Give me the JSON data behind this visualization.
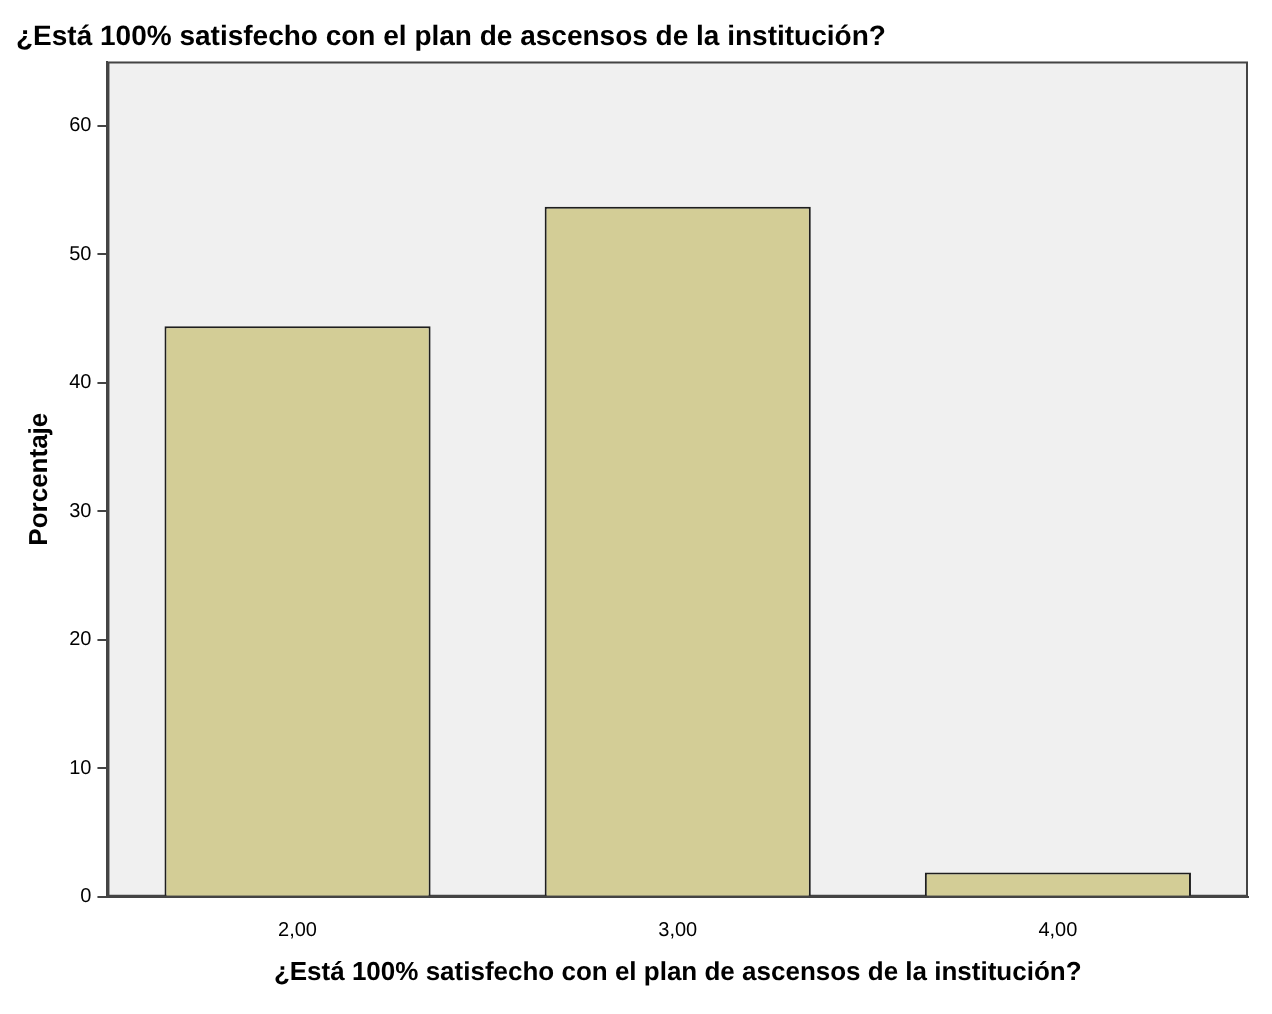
{
  "chart_data": {
    "type": "bar",
    "title": "¿Está 100% satisfecho con el plan de ascensos de la institución?",
    "xlabel": "¿Está 100% satisfecho con el plan de ascensos de la institución?",
    "ylabel": "Porcentaje",
    "categories": [
      "2,00",
      "3,00",
      "4,00"
    ],
    "values": [
      44.4,
      53.7,
      1.9
    ],
    "color": "#d3cd96",
    "ylim": [
      0,
      65
    ],
    "yticks": [
      0,
      10,
      20,
      30,
      40,
      50,
      60
    ],
    "grid": false,
    "legend": false
  }
}
